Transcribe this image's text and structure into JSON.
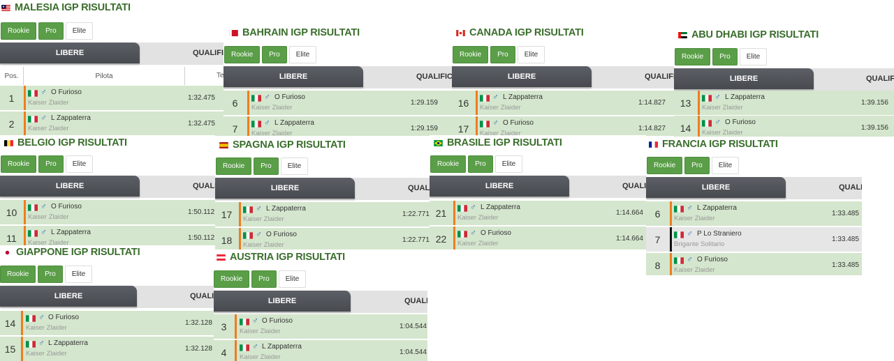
{
  "tabs": {
    "rookie": "Rookie",
    "pro": "Pro",
    "elite": "Elite"
  },
  "header": {
    "libere": "LIBERE"
  },
  "columns": {
    "pos": "Pos.",
    "pilota": "Pilota",
    "tempo": "Te"
  },
  "drivers": {
    "furioso": "O Furioso",
    "zappaterra": "L Zappaterra",
    "straniero": "P Lo Straniero"
  },
  "gender_icon": "♂",
  "teams": {
    "kaiser": "Kaiser Zlaider",
    "brigante": "Brigante Solitario"
  },
  "colors": {
    "accent_green": "#5a9e48",
    "row_green": "#d4e6cd",
    "orange_bar": "#ee7d1e",
    "title_green": "#3a6e2c"
  },
  "panels": [
    {
      "id": "malesia",
      "title": "MALESIA IGP RISULTATI",
      "flag_icon": "malaysia-flag-icon",
      "qualific": "QUALIFIC",
      "rows": [
        {
          "pos": "1",
          "driver": "O Furioso",
          "team": "Kaiser Zlaider",
          "time": "1:32.475"
        },
        {
          "pos": "2",
          "driver": "L Zappaterra",
          "team": "Kaiser Zlaider",
          "time": "1:32.475"
        }
      ]
    },
    {
      "id": "bahrain",
      "title": "BAHRAIN IGP RISULTATI",
      "flag_icon": "bahrain-flag-icon",
      "qualific": "QUALIFICA",
      "rows": [
        {
          "pos": "6",
          "driver": "O Furioso",
          "team": "Kaiser Zlaider",
          "time": "1:29.159"
        },
        {
          "pos": "7",
          "driver": "L Zappaterra",
          "team": "Kaiser Zlaider",
          "time": "1:29.159"
        }
      ]
    },
    {
      "id": "canada",
      "title": "CANADA IGP RISULTATI",
      "flag_icon": "canada-flag-icon",
      "qualific": "QUALIFIC",
      "rows": [
        {
          "pos": "16",
          "driver": "L Zappaterra",
          "team": "Kaiser Zlaider",
          "time": "1:14.827"
        },
        {
          "pos": "17",
          "driver": "O Furioso",
          "team": "Kaiser Zlaider",
          "time": "1:14.827"
        }
      ]
    },
    {
      "id": "abudhabi",
      "title": "ABU DHABI IGP RISULTATI",
      "flag_icon": "uae-flag-icon",
      "qualific": "QUALIFIC",
      "rows": [
        {
          "pos": "13",
          "driver": "L Zappaterra",
          "team": "Kaiser Zlaider",
          "time": "1:39.156"
        },
        {
          "pos": "14",
          "driver": "O Furioso",
          "team": "Kaiser Zlaider",
          "time": "1:39.156"
        }
      ]
    },
    {
      "id": "belgio",
      "title": "BELGIO IGP RISULTATI",
      "flag_icon": "belgium-flag-icon",
      "qualific": "QUALIFI",
      "rows": [
        {
          "pos": "10",
          "driver": "O Furioso",
          "team": "Kaiser Zlaider",
          "time": "1:50.112"
        },
        {
          "pos": "11",
          "driver": "L Zappaterra",
          "team": "Kaiser Zlaider",
          "time": "1:50.112"
        }
      ]
    },
    {
      "id": "spagna",
      "title": "SPAGNA IGP RISULTATI",
      "flag_icon": "spain-flag-icon",
      "qualific": "QUALIFI",
      "rows": [
        {
          "pos": "17",
          "driver": "L Zappaterra",
          "team": "Kaiser Zlaider",
          "time": "1:22.771"
        },
        {
          "pos": "18",
          "driver": "O Furioso",
          "team": "Kaiser Zlaider",
          "time": "1:22.771"
        }
      ]
    },
    {
      "id": "brasile",
      "title": "BRASILE IGP RISULTATI",
      "flag_icon": "brazil-flag-icon",
      "qualific": "QUALIFI",
      "rows": [
        {
          "pos": "21",
          "driver": "L Zappaterra",
          "team": "Kaiser Zlaider",
          "time": "1:14.664"
        },
        {
          "pos": "22",
          "driver": "O Furioso",
          "team": "Kaiser Zlaider",
          "time": "1:14.664"
        }
      ]
    },
    {
      "id": "francia",
      "title": "FRANCIA IGP RISULTATI",
      "flag_icon": "france-flag-icon",
      "qualific": "QUALIFI",
      "rows": [
        {
          "pos": "6",
          "driver": "L Zappaterra",
          "team": "Kaiser Zlaider",
          "time": "1:33.485"
        },
        {
          "pos": "7",
          "driver": "P Lo Straniero",
          "team": "Brigante Solitario",
          "time": "1:33.485"
        },
        {
          "pos": "8",
          "driver": "O Furioso",
          "team": "Kaiser Zlaider",
          "time": "1:33.485"
        }
      ]
    },
    {
      "id": "giappone",
      "title": "GIAPPONE IGP RISULTATI",
      "flag_icon": "japan-flag-icon",
      "qualific": "QUALIF",
      "rows": [
        {
          "pos": "14",
          "driver": "O Furioso",
          "team": "Kaiser Zlaider",
          "time": "1:32.128"
        },
        {
          "pos": "15",
          "driver": "L Zappaterra",
          "team": "Kaiser Zlaider",
          "time": "1:32.128"
        }
      ]
    },
    {
      "id": "austria",
      "title": "AUSTRIA IGP RISULTATI",
      "flag_icon": "austria-flag-icon",
      "qualific": "QUALIF",
      "rows": [
        {
          "pos": "3",
          "driver": "O Furioso",
          "team": "Kaiser Zlaider",
          "time": "1:04.544"
        },
        {
          "pos": "4",
          "driver": "L Zappaterra",
          "team": "Kaiser Zlaider",
          "time": "1:04.544"
        }
      ]
    }
  ]
}
